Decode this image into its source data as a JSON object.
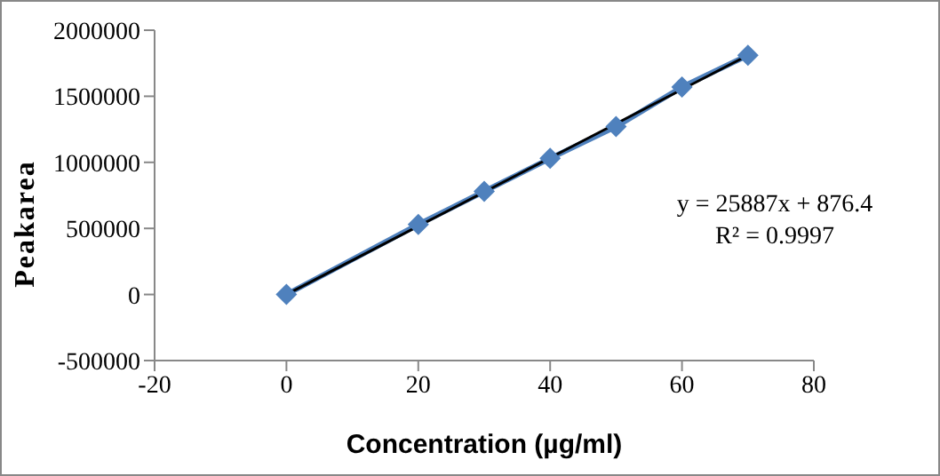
{
  "chart_data": {
    "type": "line",
    "xlabel": "Concentration (µg/ml)",
    "ylabel": "Peakarea",
    "xlim": [
      -20,
      80
    ],
    "xticks": [
      -20,
      0,
      20,
      40,
      60,
      80
    ],
    "ylim": [
      -500000,
      2000000
    ],
    "yticks": [
      -500000,
      0,
      500000,
      1000000,
      1500000,
      2000000
    ],
    "grid": false,
    "annotations": [
      "y = 25887x + 876.4",
      "R² = 0.9997"
    ],
    "x": [
      0,
      20,
      30,
      40,
      50,
      60,
      70
    ],
    "series": [
      {
        "color": "#4f81bd",
        "values": [
          0,
          530000,
          780000,
          1030000,
          1270000,
          1570000,
          1810000
        ],
        "marker": "diamond"
      },
      {
        "type": "line",
        "color": "#000000",
        "x": [
          0,
          70
        ],
        "values": [
          0,
          1810000
        ],
        "marker": "none"
      }
    ]
  }
}
